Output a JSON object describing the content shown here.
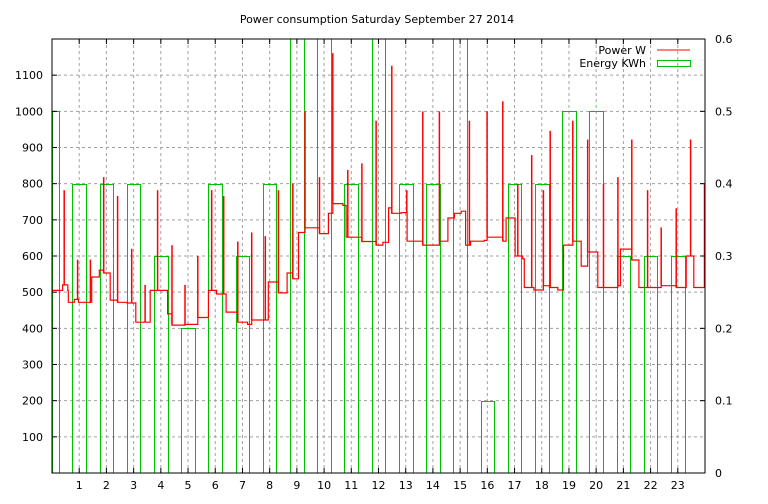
{
  "chart_data": {
    "type": "line",
    "title": "Power consumption Saturday September 27 2014",
    "xlabel": "",
    "ylabel": "",
    "xlim": [
      0,
      24
    ],
    "ylim": [
      0,
      1200
    ],
    "y2lim": [
      0,
      0.6
    ],
    "grid": true,
    "legend_position": "top-right",
    "x_ticks": [
      "1",
      "2",
      "3",
      "4",
      "5",
      "6",
      "7",
      "8",
      "9",
      "10",
      "11",
      "12",
      "13",
      "14",
      "15",
      "16",
      "17",
      "18",
      "19",
      "20",
      "21",
      "22",
      "23"
    ],
    "y_ticks": [
      "100",
      "200",
      "300",
      "400",
      "500",
      "600",
      "700",
      "800",
      "900",
      "1000",
      "1100"
    ],
    "y2_ticks": [
      "0",
      "0.1",
      "0.2",
      "0.3",
      "0.4",
      "0.5",
      "0.6"
    ],
    "series": [
      {
        "name": "Power W",
        "axis": "left",
        "style": "steps",
        "color": "#ff0000",
        "steps": [
          [
            0,
            505
          ],
          [
            0.39,
            520
          ],
          [
            0.58,
            505
          ],
          [
            0.6,
            472
          ],
          [
            0.82,
            480
          ],
          [
            0.97,
            472
          ],
          [
            1.46,
            542
          ],
          [
            1.74,
            561
          ],
          [
            1.9,
            553
          ],
          [
            2.14,
            478
          ],
          [
            2.41,
            472
          ],
          [
            2.76,
            470
          ],
          [
            3.08,
            417
          ],
          [
            3.61,
            505
          ],
          [
            4.25,
            440
          ],
          [
            4.41,
            409
          ],
          [
            4.89,
            411
          ],
          [
            5.36,
            430
          ],
          [
            5.75,
            505
          ],
          [
            6.05,
            495
          ],
          [
            6.4,
            445
          ],
          [
            6.83,
            417
          ],
          [
            7.19,
            411
          ],
          [
            7.34,
            423
          ],
          [
            7.95,
            528
          ],
          [
            8.32,
            498
          ],
          [
            8.64,
            553
          ],
          [
            8.85,
            537
          ],
          [
            9.06,
            665
          ],
          [
            9.3,
            678
          ],
          [
            9.83,
            662
          ],
          [
            10.16,
            718
          ],
          [
            10.32,
            745
          ],
          [
            10.69,
            740
          ],
          [
            10.81,
            652
          ],
          [
            11.39,
            640
          ],
          [
            11.91,
            630
          ],
          [
            12.16,
            638
          ],
          [
            12.37,
            733
          ],
          [
            12.49,
            718
          ],
          [
            12.83,
            720
          ],
          [
            13.05,
            641
          ],
          [
            13.63,
            630
          ],
          [
            14.24,
            641
          ],
          [
            14.55,
            705
          ],
          [
            14.79,
            718
          ],
          [
            15.04,
            724
          ],
          [
            15.2,
            630
          ],
          [
            15.38,
            641
          ],
          [
            15.89,
            643
          ],
          [
            15.99,
            652
          ],
          [
            16.57,
            641
          ],
          [
            16.69,
            705
          ],
          [
            17.02,
            600
          ],
          [
            17.3,
            592
          ],
          [
            17.36,
            513
          ],
          [
            17.71,
            506
          ],
          [
            18.06,
            518
          ],
          [
            18.28,
            513
          ],
          [
            18.59,
            506
          ],
          [
            18.8,
            630
          ],
          [
            19.14,
            641
          ],
          [
            19.45,
            572
          ],
          [
            19.69,
            611
          ],
          [
            20.06,
            513
          ],
          [
            20.8,
            518
          ],
          [
            20.89,
            619
          ],
          [
            21.31,
            589
          ],
          [
            21.57,
            513
          ],
          [
            22.39,
            518
          ],
          [
            22.94,
            513
          ],
          [
            23.31,
            600
          ],
          [
            23.59,
            513
          ],
          [
            24,
            513
          ]
        ],
        "spikes": [
          [
            0.45,
            782
          ],
          [
            0.94,
            590
          ],
          [
            1.41,
            590
          ],
          [
            1.9,
            818
          ],
          [
            2.41,
            766
          ],
          [
            2.93,
            620
          ],
          [
            3.42,
            520
          ],
          [
            3.88,
            782
          ],
          [
            4.41,
            630
          ],
          [
            4.89,
            520
          ],
          [
            5.36,
            600
          ],
          [
            5.87,
            782
          ],
          [
            6.31,
            766
          ],
          [
            6.83,
            640
          ],
          [
            7.34,
            665
          ],
          [
            7.84,
            655
          ],
          [
            8.32,
            782
          ],
          [
            8.85,
            800
          ],
          [
            9.3,
            1000
          ],
          [
            9.83,
            818
          ],
          [
            10.32,
            1161
          ],
          [
            10.87,
            838
          ],
          [
            11.39,
            856
          ],
          [
            11.91,
            974
          ],
          [
            12.49,
            1126
          ],
          [
            13.04,
            782
          ],
          [
            13.63,
            1000
          ],
          [
            14.24,
            1000
          ],
          [
            15.34,
            974
          ],
          [
            15.99,
            1000
          ],
          [
            16.57,
            1028
          ],
          [
            17.12,
            800
          ],
          [
            17.63,
            879
          ],
          [
            18.06,
            782
          ],
          [
            18.31,
            946
          ],
          [
            19.14,
            974
          ],
          [
            19.69,
            922
          ],
          [
            20.27,
            800
          ],
          [
            20.8,
            818
          ],
          [
            21.31,
            922
          ],
          [
            21.89,
            782
          ],
          [
            22.39,
            679
          ],
          [
            22.94,
            732
          ],
          [
            23.47,
            922
          ],
          [
            23.98,
            800
          ]
        ]
      },
      {
        "name": "Energy KWh",
        "axis": "right",
        "style": "boxes",
        "color": "#00c000",
        "x": [
          0,
          1,
          2,
          3,
          4,
          5,
          6,
          7,
          8,
          9,
          10,
          11,
          12,
          13,
          14,
          15,
          16,
          17,
          18,
          19,
          20,
          21,
          22,
          23
        ],
        "values": [
          0.5,
          0.4,
          0.4,
          0.4,
          0.3,
          0.2,
          0.4,
          0.3,
          0.4,
          0.7,
          0.7,
          0.4,
          0.7,
          0.4,
          0.4,
          0.7,
          0.1,
          0.4,
          0.4,
          0.5,
          0.5,
          0.3,
          0.3,
          0.3
        ]
      }
    ]
  }
}
